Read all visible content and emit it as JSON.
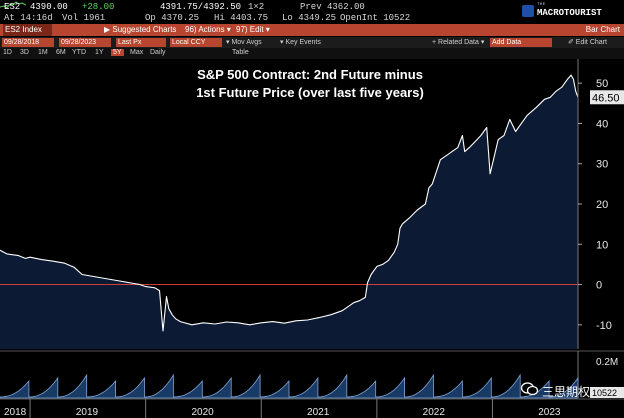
{
  "quote": {
    "ticker": "ES2",
    "last": "4390.00",
    "change": "+28.00",
    "bid_ask": "4391.75/4392.50",
    "size": "1×2",
    "prev": "Prev 4362.00",
    "at": "At 14:16d",
    "vol": "Vol   1961",
    "open": "Op   4370.25",
    "high": "Hi   4403.75",
    "low": "Lo   4349.25",
    "open_interest": "OpenInt 10522"
  },
  "logo": {
    "sub": "THE",
    "text": "MACROTOURIST"
  },
  "toolbar": {
    "index": "ES2 Index",
    "suggested": "▶ Suggested Charts",
    "actions": "96) Actions ▾",
    "edit": "97) Edit ▾",
    "right": "Bar Chart"
  },
  "controls": {
    "start_date": "09/28/2018",
    "end_date": "09/28/2023",
    "price_field": "Last Px",
    "currency": "Local CCY",
    "mov_avgs": "▾ Mov Avgs",
    "key_events": "▾ Key Events",
    "related_data": "+ Related Data ▾",
    "add_data": "Add Data",
    "edit_chart": "✐ Edit Chart"
  },
  "ranges": {
    "items": [
      "1D",
      "3D",
      "1M",
      "6M",
      "YTD",
      "1Y",
      "5Y",
      "Max",
      "Daily"
    ],
    "active": "5Y",
    "table": "Table"
  },
  "watermark": {
    "text": "三思期权"
  },
  "colors": {
    "background": "#000000",
    "plot_fill": "#0c1a33",
    "line": "#ffffff",
    "zero_line": "#d23c3c",
    "accent": "#b8452f",
    "last_label_bg": "#e8e8e8"
  },
  "chart_data": {
    "type": "area",
    "title": "S&P 500 Contract: 2nd Future minus",
    "subtitle": "1st Future Price (over last five years)",
    "x_start": 2018.74,
    "x_end": 2023.74,
    "ylim": [
      -16,
      56
    ],
    "yticks": [
      -10,
      0,
      10,
      20,
      30,
      40,
      50
    ],
    "xticks": [
      "2018",
      "2019",
      "2020",
      "2021",
      "2022",
      "2023"
    ],
    "xtick_positions": [
      2018.74,
      2019.5,
      2020.5,
      2021.5,
      2022.5,
      2023.5
    ],
    "zero_line": 0,
    "last_value": "46.50",
    "series": [
      {
        "name": "ES2 - ES1 spread",
        "x": [
          2018.74,
          2018.8,
          2018.9,
          2018.96,
          2019.0,
          2019.1,
          2019.2,
          2019.3,
          2019.38,
          2019.45,
          2019.55,
          2019.65,
          2019.75,
          2019.85,
          2019.95,
          2020.0,
          2020.08,
          2020.12,
          2020.15,
          2020.18,
          2020.2,
          2020.23,
          2020.26,
          2020.3,
          2020.4,
          2020.5,
          2020.6,
          2020.7,
          2020.8,
          2020.9,
          2021.0,
          2021.1,
          2021.2,
          2021.3,
          2021.4,
          2021.5,
          2021.6,
          2021.7,
          2021.75,
          2021.8,
          2021.85,
          2021.9,
          2021.92,
          2021.95,
          2022.0,
          2022.05,
          2022.1,
          2022.15,
          2022.18,
          2022.2,
          2022.22,
          2022.28,
          2022.35,
          2022.42,
          2022.45,
          2022.48,
          2022.55,
          2022.6,
          2022.65,
          2022.7,
          2022.74,
          2022.76,
          2022.8,
          2022.85,
          2022.9,
          2022.95,
          2022.98,
          2023.0,
          2023.05,
          2023.1,
          2023.15,
          2023.2,
          2023.3,
          2023.38,
          2023.45,
          2023.5,
          2023.55,
          2023.6,
          2023.65,
          2023.68,
          2023.7,
          2023.72,
          2023.74
        ],
        "y": [
          8.5,
          7.6,
          7.2,
          6.5,
          6.8,
          6.2,
          5.8,
          5.3,
          4.3,
          2.5,
          2.0,
          1.5,
          1.0,
          0.5,
          0.0,
          -0.5,
          -0.8,
          -1.5,
          -11.5,
          -3.0,
          -6.0,
          -7.5,
          -8.5,
          -9.2,
          -10.0,
          -9.5,
          -9.8,
          -9.3,
          -9.5,
          -10.0,
          -9.5,
          -9.2,
          -9.6,
          -9.0,
          -8.8,
          -8.2,
          -7.5,
          -6.5,
          -5.5,
          -4.5,
          -4.0,
          -3.2,
          0.5,
          2.5,
          4.5,
          5.0,
          6.0,
          8.0,
          10.0,
          14.0,
          15.0,
          16.5,
          18.5,
          20.0,
          24.0,
          25.0,
          31.0,
          32.0,
          33.0,
          34.0,
          37.0,
          33.0,
          34.0,
          35.5,
          37.0,
          39.0,
          27.5,
          30.0,
          36.0,
          37.0,
          41.0,
          38.0,
          42.0,
          44.0,
          46.0,
          46.5,
          48.0,
          49.0,
          51.0,
          52.0,
          51.0,
          48.0,
          46.5
        ]
      }
    ],
    "volume_panel": {
      "label": "0.2M",
      "last_value": "10522"
    }
  }
}
